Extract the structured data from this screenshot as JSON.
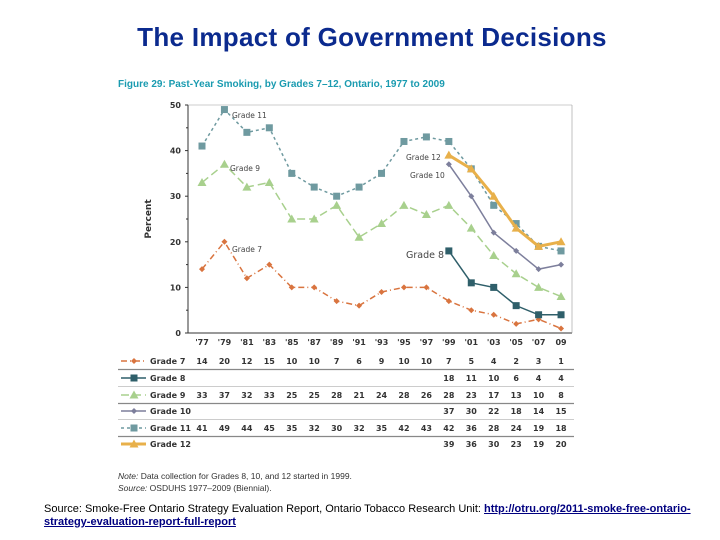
{
  "slide_title": "The Impact of Government Decisions",
  "chart_data": {
    "type": "line",
    "title": "Figure 29: Past-Year Smoking, by Grades 7–12, Ontario, 1977 to 2009",
    "ylabel": "Percent",
    "xlabel": "",
    "ylim": [
      0,
      50
    ],
    "yticks": [
      0,
      10,
      20,
      30,
      40,
      50
    ],
    "categories": [
      "'77",
      "'79",
      "'81",
      "'83",
      "'85",
      "'87",
      "'89",
      "'91",
      "'93",
      "'95",
      "'97",
      "'99",
      "'01",
      "'03",
      "'05",
      "'07",
      "09"
    ],
    "legend_placement": "table-below",
    "series": [
      {
        "name": "Grade 7",
        "color": "#d9743f",
        "marker": "diamond",
        "dash": "6,3,1,3",
        "values": [
          14,
          20,
          12,
          15,
          10,
          10,
          7,
          6,
          9,
          10,
          10,
          7,
          5,
          4,
          2,
          3,
          1
        ]
      },
      {
        "name": "Grade 8",
        "color": "#2f5f6a",
        "marker": "square",
        "dash": "",
        "values": [
          null,
          null,
          null,
          null,
          null,
          null,
          null,
          null,
          null,
          null,
          null,
          18,
          11,
          10,
          6,
          4,
          4
        ]
      },
      {
        "name": "Grade 9",
        "color": "#a8d08d",
        "marker": "triangle",
        "dash": "8,4",
        "values": [
          33,
          37,
          32,
          33,
          25,
          25,
          28,
          21,
          24,
          28,
          26,
          28,
          23,
          17,
          13,
          10,
          8
        ]
      },
      {
        "name": "Grade 10",
        "color": "#7d7f9c",
        "marker": "diamond",
        "dash": "",
        "values": [
          null,
          null,
          null,
          null,
          null,
          null,
          null,
          null,
          null,
          null,
          null,
          37,
          30,
          22,
          18,
          14,
          15
        ]
      },
      {
        "name": "Grade 11",
        "color": "#6f9aa0",
        "marker": "square",
        "dash": "3,3",
        "values": [
          41,
          49,
          44,
          45,
          35,
          32,
          30,
          32,
          35,
          42,
          43,
          42,
          36,
          28,
          24,
          19,
          18
        ]
      },
      {
        "name": "Grade 12",
        "color": "#e8b04a",
        "marker": "triangle",
        "dash": "",
        "values": [
          null,
          null,
          null,
          null,
          null,
          null,
          null,
          null,
          null,
          null,
          null,
          39,
          36,
          30,
          23,
          19,
          20
        ]
      }
    ],
    "annotations": [
      "Grade 11",
      "Grade 9",
      "Grade 7",
      "Grade 12",
      "Grade 10",
      "Grade 8"
    ]
  },
  "note_label": "Note:",
  "note_text": " Data collection for Grades 8, 10, and 12 started in 1999.",
  "source_label": "Source:",
  "source_text": " OSDUHS 1977–2009 (Biennial).",
  "footer_source": "Source: Smoke-Free Ontario Strategy Evaluation Report, Ontario Tobacco Research Unit: ",
  "footer_link": "http://otru.org/2011-smoke-free-ontario-strategy-evaluation-report-full-report"
}
